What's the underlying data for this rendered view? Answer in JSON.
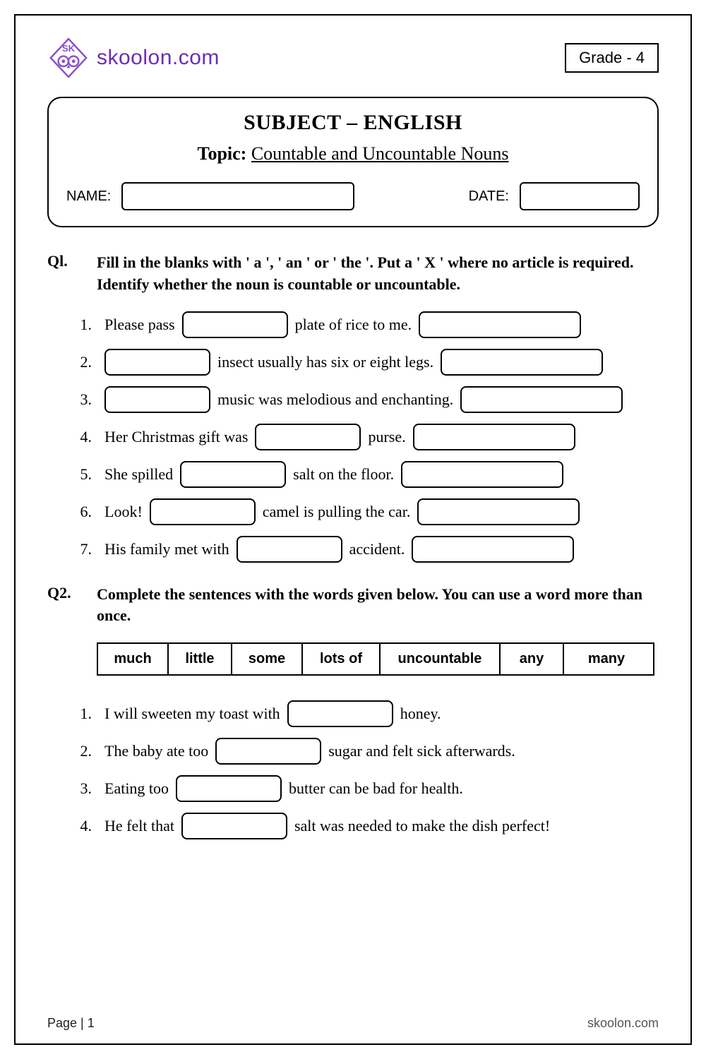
{
  "brand": {
    "name": "skoolon.com",
    "color": "#6b2db5"
  },
  "grade": "Grade - 4",
  "subject_heading": "SUBJECT – ENGLISH",
  "topic_label": "Topic:",
  "topic_value": "Countable and Uncountable Nouns",
  "name_label": "NAME:",
  "date_label": "DATE:",
  "q1": {
    "num": "Ql.",
    "text": "Fill in the blanks with ' a ', ' an ' or ' the '. Put a ' X ' where no article is required. Identify whether the noun is countable or uncountable.",
    "items": [
      {
        "n": "1.",
        "pre": "Please pass",
        "mid": "plate of rice to me."
      },
      {
        "n": "2.",
        "pre": "",
        "mid": "insect usually has six or eight legs."
      },
      {
        "n": "3.",
        "pre": "",
        "mid": "music was melodious and enchanting."
      },
      {
        "n": "4.",
        "pre": "Her Christmas gift was",
        "mid": "purse."
      },
      {
        "n": "5.",
        "pre": "She spilled",
        "mid": "salt on the floor."
      },
      {
        "n": "6.",
        "pre": "Look!",
        "mid": "camel is pulling the car."
      },
      {
        "n": "7.",
        "pre": "His family met with",
        "mid": "accident."
      }
    ]
  },
  "q2": {
    "num": "Q2.",
    "text": "Complete the sentences with the words given below. You can use a word more than once.",
    "words": [
      "much",
      "little",
      "some",
      "lots of",
      "uncountable",
      "any",
      "many"
    ],
    "word_widths": [
      100,
      90,
      100,
      110,
      170,
      90,
      120
    ],
    "items": [
      {
        "n": "1.",
        "pre": "I will sweeten my toast with",
        "post": "honey."
      },
      {
        "n": "2.",
        "pre": "The baby ate too",
        "post": "sugar and felt sick afterwards."
      },
      {
        "n": "3.",
        "pre": "Eating too",
        "post": "butter can be bad for health."
      },
      {
        "n": "4.",
        "pre": "He felt that",
        "post": "salt was needed to make the dish perfect!"
      }
    ]
  },
  "footer": {
    "left": "Page | 1",
    "right": "skoolon.com"
  }
}
